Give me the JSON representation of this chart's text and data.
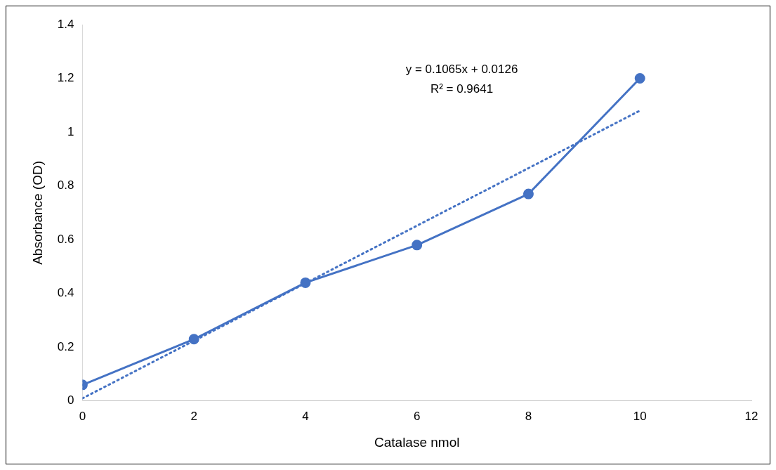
{
  "chart_data": {
    "type": "line",
    "xlabel": "Catalase nmol",
    "ylabel": "Absorbance (OD)",
    "x": [
      0,
      2,
      4,
      6,
      8,
      10
    ],
    "series": [
      {
        "color": "#4472c4",
        "values": [
          0.06,
          0.23,
          0.44,
          0.58,
          0.77,
          1.2
        ],
        "marker": "circle",
        "line_style": "solid"
      },
      {
        "type": "line",
        "x": [
          0,
          10
        ],
        "color": "#4472c4",
        "values": [
          0.01,
          1.08
        ],
        "marker": "none",
        "line_style": "dotted"
      }
    ],
    "xlim": [
      0,
      12
    ],
    "xticks": [
      0,
      2,
      4,
      6,
      8,
      10,
      12
    ],
    "ylim": [
      0,
      1.4
    ],
    "yticks": [
      0,
      0.2,
      0.4,
      0.6,
      0.8,
      1,
      1.2,
      1.4
    ],
    "annotations": [
      "y = 0.1065x + 0.0126",
      "R² = 0.9641"
    ],
    "grid": false,
    "legend": false
  }
}
